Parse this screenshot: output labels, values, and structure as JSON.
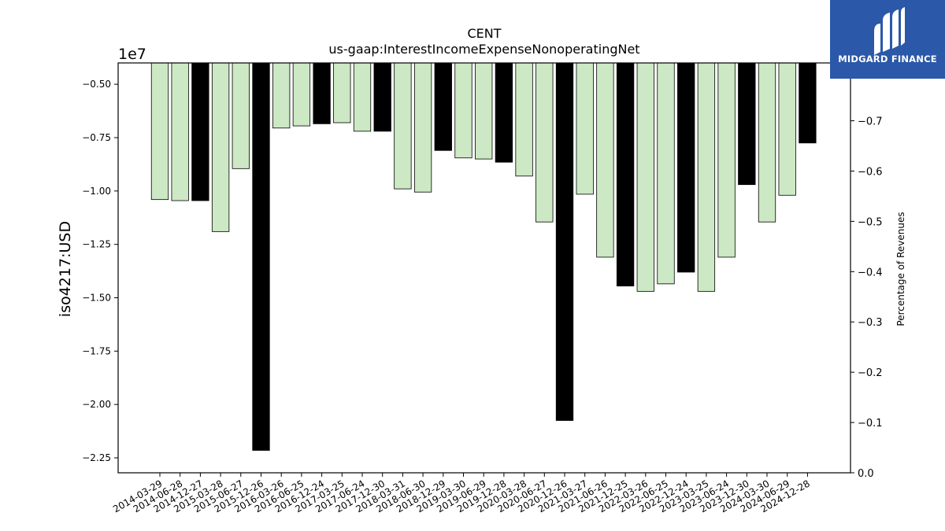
{
  "chart_data": {
    "type": "bar",
    "title": "CENT",
    "subtitle": "us-gaap:InterestIncomeExpenseNonoperatingNet",
    "ylabel": "iso4217:USD",
    "y_multiplier_label": "1e7",
    "y2label": "Percentage of Revenues",
    "ylim": [
      -2.32,
      -0.4
    ],
    "y_scale": 10000000,
    "y_ticks": [
      -0.5,
      -0.75,
      -1.0,
      -1.25,
      -1.5,
      -1.75,
      -2.0,
      -2.25
    ],
    "y_tick_labels": [
      "−0.50",
      "−0.75",
      "−1.00",
      "−1.25",
      "−1.50",
      "−1.75",
      "−2.00",
      "−2.25"
    ],
    "y2lim": [
      0.0,
      -0.815
    ],
    "y2_ticks": [
      -0.7,
      -0.6,
      -0.5,
      -0.4,
      -0.3,
      -0.2,
      -0.1,
      0.0
    ],
    "y2_tick_labels": [
      "−0.7",
      "−0.6",
      "−0.5",
      "−0.4",
      "−0.3",
      "−0.2",
      "−0.1",
      "0.0"
    ],
    "grid": false,
    "colors": {
      "quarterly": "#cce8c4",
      "annual": "#000000",
      "edge": "#000000"
    },
    "categories": [
      "2014-03-29",
      "2014-06-28",
      "2014-12-27",
      "2015-03-28",
      "2015-06-27",
      "2015-12-26",
      "2016-03-26",
      "2016-06-25",
      "2016-12-24",
      "2017-03-25",
      "2017-06-24",
      "2017-12-30",
      "2018-03-31",
      "2018-06-30",
      "2018-12-29",
      "2019-03-30",
      "2019-06-29",
      "2019-12-28",
      "2020-03-28",
      "2020-06-27",
      "2020-12-26",
      "2021-03-27",
      "2021-06-26",
      "2021-12-25",
      "2022-03-26",
      "2022-06-25",
      "2022-12-24",
      "2023-03-25",
      "2023-06-24",
      "2023-12-30",
      "2024-03-30",
      "2024-06-29",
      "2024-12-28"
    ],
    "values": [
      -10400000,
      -10450000,
      -10450000,
      -11900000,
      -8950000,
      -22150000,
      -7050000,
      -6950000,
      -6850000,
      -6800000,
      -7200000,
      -7200000,
      -9900000,
      -10050000,
      -8100000,
      -8450000,
      -8500000,
      -8650000,
      -9300000,
      -11450000,
      -20750000,
      -10150000,
      -13100000,
      -14450000,
      -14700000,
      -14350000,
      -13800000,
      -14700000,
      -13100000,
      -9700000,
      -11450000,
      -10200000,
      -7750000
    ],
    "bar_kind": [
      "quarterly",
      "quarterly",
      "annual",
      "quarterly",
      "quarterly",
      "annual",
      "quarterly",
      "quarterly",
      "annual",
      "quarterly",
      "quarterly",
      "annual",
      "quarterly",
      "quarterly",
      "annual",
      "quarterly",
      "quarterly",
      "annual",
      "quarterly",
      "quarterly",
      "annual",
      "quarterly",
      "quarterly",
      "annual",
      "quarterly",
      "quarterly",
      "annual",
      "quarterly",
      "quarterly",
      "annual",
      "quarterly",
      "quarterly",
      "annual"
    ]
  },
  "logo": {
    "name": "midgard-finance-logo",
    "text": "MIDGARD FINANCE"
  }
}
